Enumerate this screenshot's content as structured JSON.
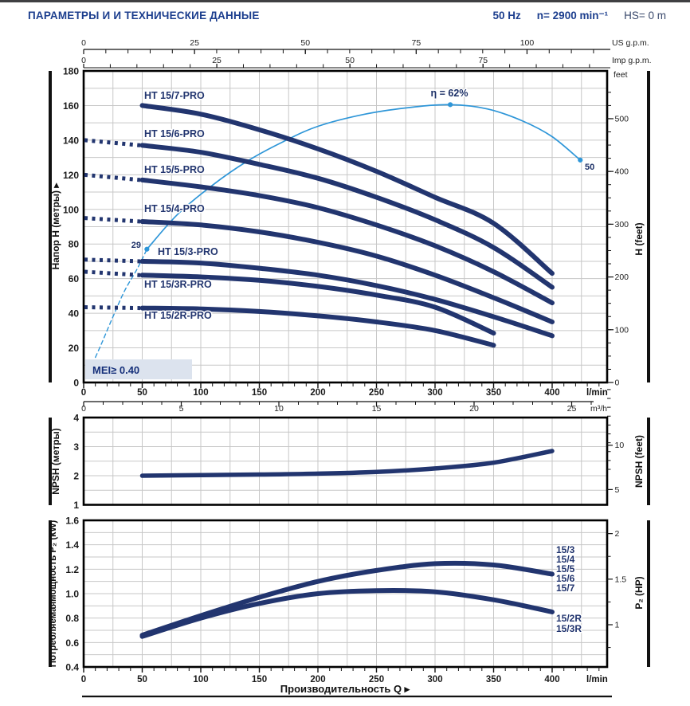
{
  "header": {
    "title": "ПАРАМЕТРЫ И И ТЕХНИЧЕСКИЕ ДАННЫЕ",
    "frequency": "50 Hz",
    "speed": "n= 2900 min⁻¹",
    "suction_head": "HS= 0 m"
  },
  "units": {
    "lmin": "l/min",
    "m3h": "m³/h",
    "us": "US g.p.m.",
    "imp": "Imp g.p.m.",
    "feet": "feet"
  },
  "colors": {
    "navy": "#22356f",
    "light_blue": "#2e96d8",
    "grid": "#c7c7c7",
    "axis": "#111111",
    "tick_text": "#222222",
    "mei_box": "#dce3ee",
    "label_navy": "#1b2f66"
  },
  "chart_data": [
    {
      "type": "line",
      "name": "head_flow_curves",
      "ylabel_left": "Напор  H (метры)  ▸",
      "ylabel_right": "H (feet)",
      "xlim_lmin": [
        0,
        447
      ],
      "ylim_m": [
        0,
        180
      ],
      "x_ticks_lmin": [
        0,
        50,
        100,
        150,
        200,
        250,
        300,
        350,
        400
      ],
      "x_ticks_m3h": [
        0,
        5,
        10,
        15,
        20,
        25
      ],
      "x_ticks_usgpm": [
        0,
        25,
        50,
        75,
        100
      ],
      "x_ticks_impgpm": [
        0,
        25,
        50,
        75
      ],
      "y_ticks_m": [
        0,
        20,
        40,
        60,
        80,
        100,
        120,
        140,
        160,
        180
      ],
      "y_ticks_feet": [
        0,
        100,
        200,
        300,
        400,
        500
      ],
      "grid": true,
      "series": [
        {
          "label": "HT 15/7-PRO",
          "shutoff_h": null,
          "q": [
            50,
            100,
            150,
            200,
            250,
            300,
            350,
            400
          ],
          "h": [
            160,
            155,
            146,
            135,
            122,
            107,
            92,
            63
          ]
        },
        {
          "label": "HT 15/6-PRO",
          "shutoff_h": 140,
          "q": [
            50,
            100,
            150,
            200,
            250,
            300,
            350,
            400
          ],
          "h": [
            137,
            133,
            126,
            118,
            107,
            94,
            78,
            55
          ]
        },
        {
          "label": "HT 15/5-PRO",
          "shutoff_h": 120,
          "q": [
            50,
            100,
            150,
            200,
            250,
            300,
            350,
            400
          ],
          "h": [
            117,
            113,
            108,
            101,
            91,
            79,
            64,
            46
          ]
        },
        {
          "label": "HT 15/4-PRO",
          "shutoff_h": 95,
          "q": [
            50,
            100,
            150,
            200,
            250,
            300,
            350,
            400
          ],
          "h": [
            93,
            91,
            87,
            81,
            73,
            62,
            49,
            35
          ]
        },
        {
          "label": "HT 15/3-PRO",
          "shutoff_h": 71,
          "q": [
            50,
            100,
            150,
            200,
            250,
            300,
            350,
            400
          ],
          "h": [
            70,
            69,
            66,
            62,
            56,
            48,
            38,
            27
          ]
        },
        {
          "label": "HT 15/3R-PRO",
          "shutoff_h": 64,
          "q": [
            50,
            100,
            150,
            200,
            250,
            300,
            350
          ],
          "h": [
            62,
            61,
            59,
            55.5,
            50.5,
            43.5,
            28.5
          ]
        },
        {
          "label": "HT 15/2R-PRO",
          "shutoff_h": 43.5,
          "q": [
            50,
            100,
            150,
            200,
            250,
            300,
            350
          ],
          "h": [
            43,
            42.5,
            41,
            38.5,
            35,
            30,
            21.5
          ]
        }
      ],
      "efficiency": {
        "label": "η = 62%",
        "marker_start_label": "29",
        "marker_end_label": "50",
        "dashed_q": [
          5,
          15,
          25,
          35,
          46,
          54
        ],
        "dashed_h": [
          7,
          22,
          38,
          53,
          66,
          77
        ],
        "solid_q": [
          54,
          80,
          110,
          140,
          170,
          200,
          240,
          280,
          313,
          345,
          375,
          400,
          424
        ],
        "solid_h": [
          77,
          97,
          114,
          128,
          139,
          148,
          155,
          159,
          160.5,
          158,
          151,
          142,
          128.5
        ],
        "markers": [
          {
            "q": 54,
            "h": 77
          },
          {
            "q": 313,
            "h": 160.5
          },
          {
            "q": 424,
            "h": 128.5
          }
        ]
      },
      "mei_label": "MEI≥ 0.40"
    },
    {
      "type": "line",
      "name": "npsh_curve",
      "ylabel_left": "NPSH (метры)",
      "ylabel_right": "NPSH (feet)",
      "ylim_m": [
        1,
        4
      ],
      "y_ticks_m": [
        4,
        3,
        2,
        1
      ],
      "y_ticks_feet": [
        5,
        10
      ],
      "grid": true,
      "q": [
        50,
        100,
        150,
        200,
        250,
        300,
        350,
        400
      ],
      "npsh_m": [
        2.0,
        2.02,
        2.04,
        2.07,
        2.13,
        2.25,
        2.45,
        2.85
      ]
    },
    {
      "type": "line",
      "name": "power_curves",
      "ylabel_left": "Потребляемаямощность  P₂ (kW)",
      "ylabel_right": "P₂ (HP)",
      "xlabel": "Производительность Q  ▸",
      "ylim_kw": [
        0.4,
        1.6
      ],
      "y_ticks_kw": [
        0.4,
        0.6,
        0.8,
        1.0,
        1.2,
        1.4,
        1.6
      ],
      "y_ticks_hp": [
        1,
        1.5,
        2
      ],
      "x_ticks_lmin": [
        0,
        50,
        100,
        150,
        200,
        250,
        300,
        350,
        400
      ],
      "grid": true,
      "series": [
        {
          "group_labels": [
            "15/3",
            "15/4",
            "15/5",
            "15/6",
            "15/7"
          ],
          "q": [
            50,
            100,
            150,
            200,
            250,
            300,
            350,
            400
          ],
          "kw": [
            0.66,
            0.82,
            0.97,
            1.1,
            1.19,
            1.245,
            1.235,
            1.16
          ]
        },
        {
          "group_labels": [
            "15/2R",
            "15/3R"
          ],
          "q": [
            50,
            100,
            150,
            200,
            250,
            300,
            350,
            400
          ],
          "kw": [
            0.65,
            0.8,
            0.92,
            1.0,
            1.025,
            1.015,
            0.95,
            0.85
          ]
        }
      ]
    }
  ]
}
